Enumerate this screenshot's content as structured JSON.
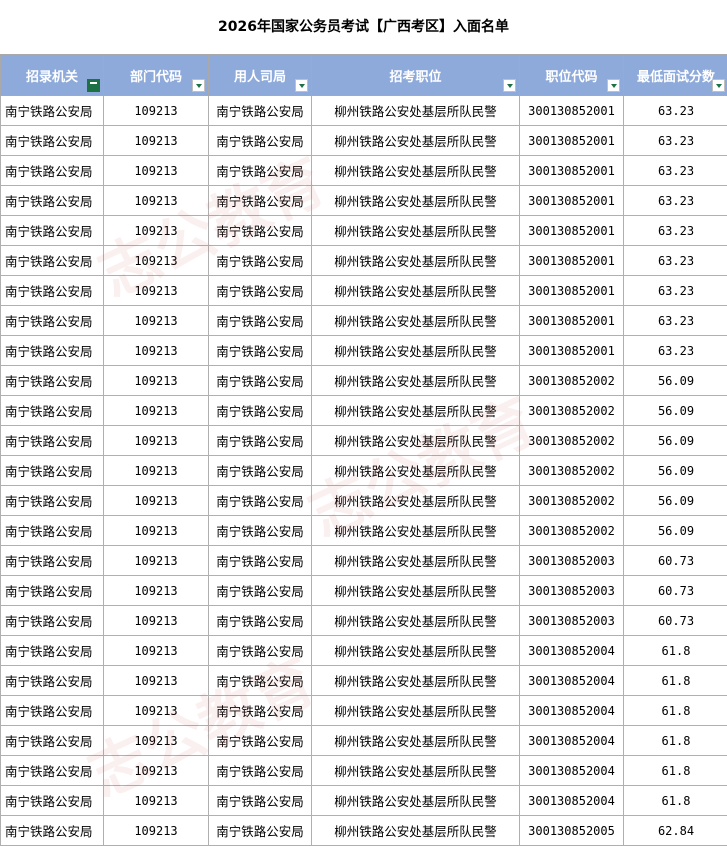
{
  "title": "2026年国家公务员考试【广西考区】入面名单",
  "columns": [
    "招录机关",
    "部门代码",
    "用人司局",
    "招考职位",
    "职位代码",
    "最低面试分数"
  ],
  "filter_active_column": 0,
  "accent_color": "#8eaadb",
  "rows": [
    [
      "南宁铁路公安局",
      "109213",
      "南宁铁路公安局",
      "柳州铁路公安处基层所队民警",
      "300130852001",
      "63.23"
    ],
    [
      "南宁铁路公安局",
      "109213",
      "南宁铁路公安局",
      "柳州铁路公安处基层所队民警",
      "300130852001",
      "63.23"
    ],
    [
      "南宁铁路公安局",
      "109213",
      "南宁铁路公安局",
      "柳州铁路公安处基层所队民警",
      "300130852001",
      "63.23"
    ],
    [
      "南宁铁路公安局",
      "109213",
      "南宁铁路公安局",
      "柳州铁路公安处基层所队民警",
      "300130852001",
      "63.23"
    ],
    [
      "南宁铁路公安局",
      "109213",
      "南宁铁路公安局",
      "柳州铁路公安处基层所队民警",
      "300130852001",
      "63.23"
    ],
    [
      "南宁铁路公安局",
      "109213",
      "南宁铁路公安局",
      "柳州铁路公安处基层所队民警",
      "300130852001",
      "63.23"
    ],
    [
      "南宁铁路公安局",
      "109213",
      "南宁铁路公安局",
      "柳州铁路公安处基层所队民警",
      "300130852001",
      "63.23"
    ],
    [
      "南宁铁路公安局",
      "109213",
      "南宁铁路公安局",
      "柳州铁路公安处基层所队民警",
      "300130852001",
      "63.23"
    ],
    [
      "南宁铁路公安局",
      "109213",
      "南宁铁路公安局",
      "柳州铁路公安处基层所队民警",
      "300130852001",
      "63.23"
    ],
    [
      "南宁铁路公安局",
      "109213",
      "南宁铁路公安局",
      "柳州铁路公安处基层所队民警",
      "300130852002",
      "56.09"
    ],
    [
      "南宁铁路公安局",
      "109213",
      "南宁铁路公安局",
      "柳州铁路公安处基层所队民警",
      "300130852002",
      "56.09"
    ],
    [
      "南宁铁路公安局",
      "109213",
      "南宁铁路公安局",
      "柳州铁路公安处基层所队民警",
      "300130852002",
      "56.09"
    ],
    [
      "南宁铁路公安局",
      "109213",
      "南宁铁路公安局",
      "柳州铁路公安处基层所队民警",
      "300130852002",
      "56.09"
    ],
    [
      "南宁铁路公安局",
      "109213",
      "南宁铁路公安局",
      "柳州铁路公安处基层所队民警",
      "300130852002",
      "56.09"
    ],
    [
      "南宁铁路公安局",
      "109213",
      "南宁铁路公安局",
      "柳州铁路公安处基层所队民警",
      "300130852002",
      "56.09"
    ],
    [
      "南宁铁路公安局",
      "109213",
      "南宁铁路公安局",
      "柳州铁路公安处基层所队民警",
      "300130852003",
      "60.73"
    ],
    [
      "南宁铁路公安局",
      "109213",
      "南宁铁路公安局",
      "柳州铁路公安处基层所队民警",
      "300130852003",
      "60.73"
    ],
    [
      "南宁铁路公安局",
      "109213",
      "南宁铁路公安局",
      "柳州铁路公安处基层所队民警",
      "300130852003",
      "60.73"
    ],
    [
      "南宁铁路公安局",
      "109213",
      "南宁铁路公安局",
      "柳州铁路公安处基层所队民警",
      "300130852004",
      "61.8"
    ],
    [
      "南宁铁路公安局",
      "109213",
      "南宁铁路公安局",
      "柳州铁路公安处基层所队民警",
      "300130852004",
      "61.8"
    ],
    [
      "南宁铁路公安局",
      "109213",
      "南宁铁路公安局",
      "柳州铁路公安处基层所队民警",
      "300130852004",
      "61.8"
    ],
    [
      "南宁铁路公安局",
      "109213",
      "南宁铁路公安局",
      "柳州铁路公安处基层所队民警",
      "300130852004",
      "61.8"
    ],
    [
      "南宁铁路公安局",
      "109213",
      "南宁铁路公安局",
      "柳州铁路公安处基层所队民警",
      "300130852004",
      "61.8"
    ],
    [
      "南宁铁路公安局",
      "109213",
      "南宁铁路公安局",
      "柳州铁路公安处基层所队民警",
      "300130852004",
      "61.8"
    ],
    [
      "南宁铁路公安局",
      "109213",
      "南宁铁路公安局",
      "柳州铁路公安处基层所队民警",
      "300130852005",
      "62.84"
    ]
  ]
}
